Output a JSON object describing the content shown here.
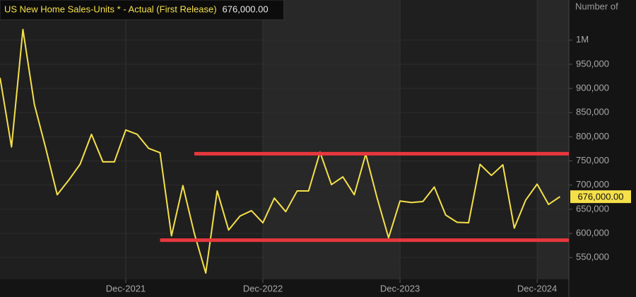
{
  "chart_data": {
    "type": "line",
    "title": "US New Home Sales-Units * - Actual (First Release)",
    "title_value": "676,000.00",
    "y_axis_label": "Number of",
    "x": [
      "Jan-2021",
      "Feb-2021",
      "Mar-2021",
      "Apr-2021",
      "May-2021",
      "Jun-2021",
      "Jul-2021",
      "Aug-2021",
      "Sep-2021",
      "Oct-2021",
      "Nov-2021",
      "Dec-2021",
      "Jan-2022",
      "Feb-2022",
      "Mar-2022",
      "Apr-2022",
      "May-2022",
      "Jun-2022",
      "Jul-2022",
      "Aug-2022",
      "Sep-2022",
      "Oct-2022",
      "Nov-2022",
      "Dec-2022",
      "Jan-2023",
      "Feb-2023",
      "Mar-2023",
      "Apr-2023",
      "May-2023",
      "Jun-2023",
      "Jul-2023",
      "Aug-2023",
      "Sep-2023",
      "Oct-2023",
      "Nov-2023",
      "Dec-2023",
      "Jan-2024",
      "Feb-2024",
      "Mar-2024",
      "Apr-2024",
      "May-2024",
      "Jun-2024",
      "Jul-2024",
      "Aug-2024",
      "Sep-2024",
      "Oct-2024",
      "Nov-2024",
      "Dec-2024",
      "Jan-2025",
      "Feb-2025"
    ],
    "series": [
      {
        "name": "US New Home Sales-Units * - Actual (First Release)",
        "color": "#f5e04a",
        "values": [
          922000,
          779000,
          1022000,
          867000,
          776000,
          680000,
          710000,
          743000,
          805000,
          748000,
          748000,
          814000,
          805000,
          776000,
          767000,
          595000,
          699000,
          600000,
          518000,
          688000,
          607000,
          636000,
          647000,
          622000,
          673000,
          645000,
          688000,
          688000,
          768000,
          701000,
          717000,
          680000,
          764000,
          673000,
          591000,
          667000,
          664000,
          666000,
          696000,
          638000,
          623000,
          622000,
          743000,
          720000,
          742000,
          611000,
          669000,
          702000,
          660000,
          676000
        ],
        "last_value_label": "676,000.00"
      }
    ],
    "reference_lines": [
      {
        "value": 765000,
        "start": "Jun-2022",
        "color": "#e8373d"
      },
      {
        "value": 586000,
        "start": "Mar-2022",
        "color": "#e8373d"
      }
    ],
    "xticks": [
      "Dec-2021",
      "Dec-2022",
      "Dec-2023",
      "Dec-2024"
    ],
    "ylim": [
      505000,
      1083000
    ],
    "yticks": [
      {
        "value": 550000,
        "label": "550,000"
      },
      {
        "value": 600000,
        "label": "600,000"
      },
      {
        "value": 650000,
        "label": "650,000"
      },
      {
        "value": 700000,
        "label": "700,000"
      },
      {
        "value": 750000,
        "label": "750,000"
      },
      {
        "value": 800000,
        "label": "800,000"
      },
      {
        "value": 850000,
        "label": "850,000"
      },
      {
        "value": 900000,
        "label": "900,000"
      },
      {
        "value": 950000,
        "label": "950,000"
      },
      {
        "value": 1000000,
        "label": "1M"
      }
    ],
    "grid": true
  }
}
